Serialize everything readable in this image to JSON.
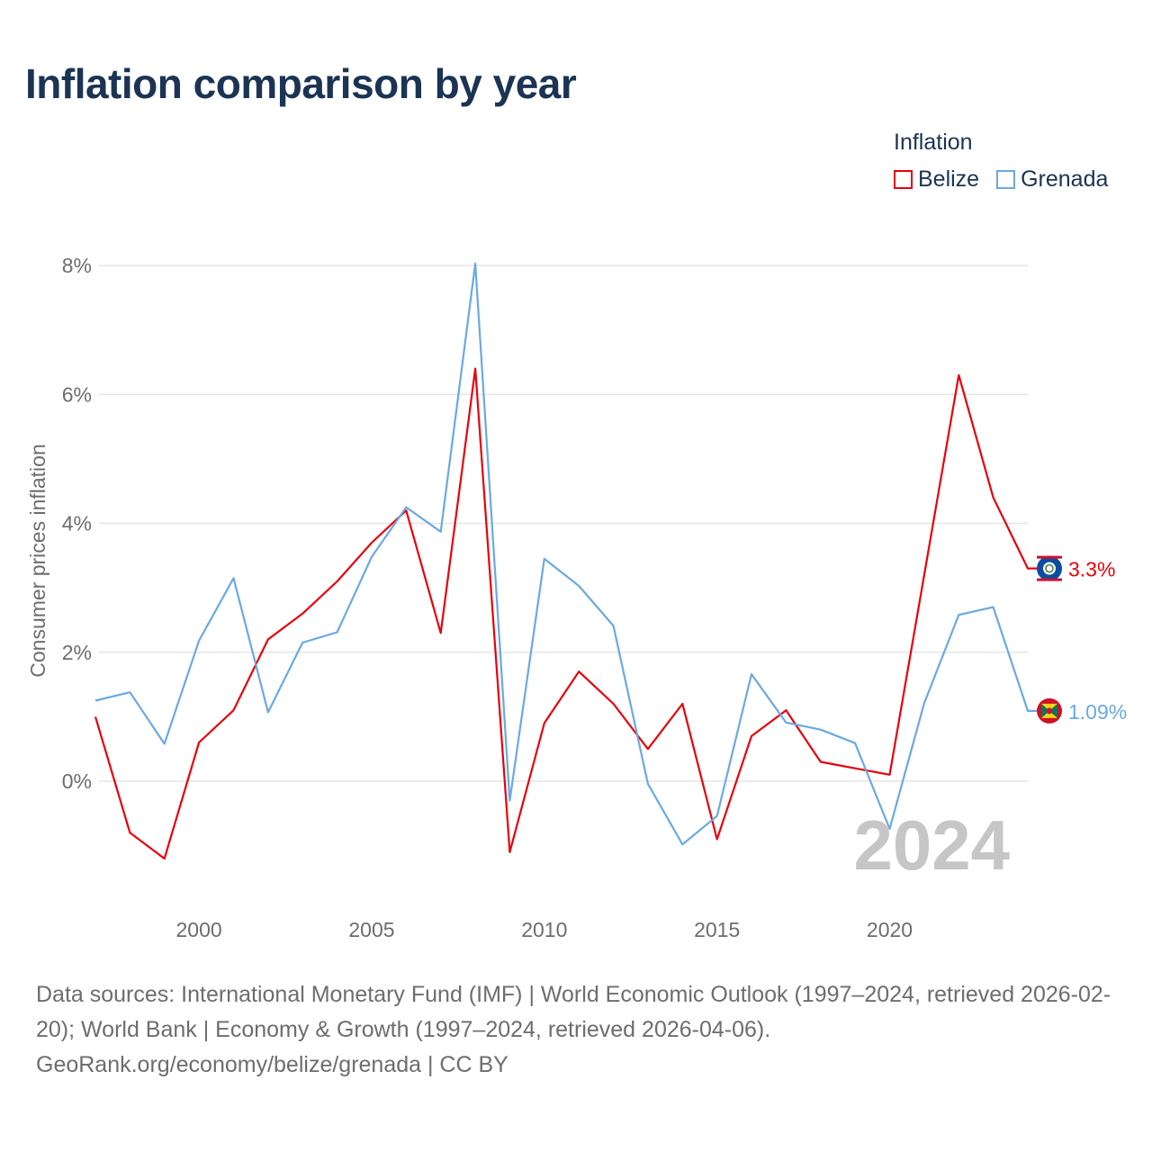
{
  "title": "Inflation comparison by year",
  "legend": {
    "title": "Inflation",
    "items": [
      {
        "label": "Belize",
        "color": "#e8000b"
      },
      {
        "label": "Grenada",
        "color": "#6aa9e4"
      }
    ]
  },
  "chart_data": {
    "type": "line",
    "title": "Inflation comparison by year",
    "xlabel": "",
    "ylabel": "Consumer prices inflation",
    "x": [
      1997,
      1998,
      1999,
      2000,
      2001,
      2002,
      2003,
      2004,
      2005,
      2006,
      2007,
      2008,
      2009,
      2010,
      2011,
      2012,
      2013,
      2014,
      2015,
      2016,
      2017,
      2018,
      2019,
      2020,
      2021,
      2022,
      2023,
      2024
    ],
    "xlim": [
      1997,
      2024
    ],
    "ylim": [
      -1.8,
      8.2
    ],
    "xticks": [
      2000,
      2005,
      2010,
      2015,
      2020
    ],
    "xtick_labels": [
      "2000",
      "2005",
      "2010",
      "2015",
      "2020"
    ],
    "yticks": [
      0,
      2,
      4,
      6,
      8
    ],
    "ytick_labels": [
      "0%",
      "2%",
      "4%",
      "6%",
      "8%"
    ],
    "grid": true,
    "year_watermark": "2024",
    "series": [
      {
        "name": "Belize",
        "color": "#e8000b",
        "end_label": "3.3%",
        "values": [
          1.0,
          -0.8,
          -1.2,
          0.6,
          1.1,
          2.2,
          2.6,
          3.1,
          3.7,
          4.2,
          2.3,
          6.4,
          -1.1,
          0.9,
          1.7,
          1.2,
          0.5,
          1.2,
          -0.9,
          0.7,
          1.1,
          0.3,
          0.2,
          0.1,
          3.2,
          6.3,
          4.4,
          3.3
        ]
      },
      {
        "name": "Grenada",
        "color": "#6aa9e4",
        "end_label": "1.09%",
        "values": [
          1.25,
          1.38,
          0.58,
          2.18,
          3.15,
          1.07,
          2.15,
          2.31,
          3.48,
          4.25,
          3.87,
          8.03,
          -0.3,
          3.45,
          3.03,
          2.41,
          -0.04,
          -0.98,
          -0.54,
          1.66,
          0.91,
          0.8,
          0.59,
          -0.74,
          1.21,
          2.58,
          2.7,
          1.09
        ]
      }
    ]
  },
  "sources": {
    "line1": "Data sources: International Monetary Fund (IMF) | World Economic Outlook (1997–2024, retrieved 2026-",
    "line2": "02-20); World Bank | Economy & Growth (1997–2024, retrieved 2026-04-06).",
    "line3": "GeoRank.org/economy/belize/grenada | CC BY"
  }
}
